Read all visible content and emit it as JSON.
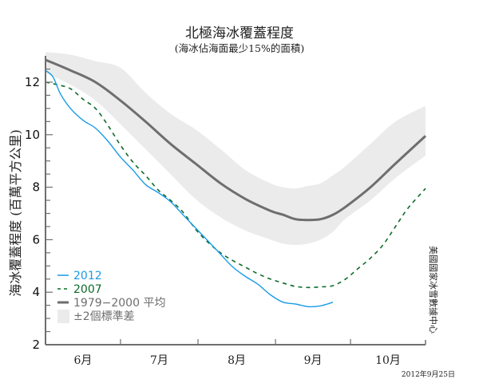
{
  "chart_data": {
    "type": "line",
    "title": "北極海冰覆蓋程度",
    "subtitle": "(海冰佔海面最少15%的面積)",
    "xlabel": "",
    "ylabel": "海冰覆蓋程度 (百萬平方公里)",
    "x_unit": "days since June 1",
    "xlim": [
      0,
      152
    ],
    "ylim": [
      2,
      13
    ],
    "yticks": [
      2,
      4,
      6,
      8,
      10,
      12
    ],
    "ytick_labels": [
      "2",
      "4",
      "6",
      "8",
      "10",
      "12"
    ],
    "month_boundaries": [
      30,
      61,
      92,
      122
    ],
    "month_labels": [
      {
        "label": "6月",
        "center": 15
      },
      {
        "label": "7月",
        "center": 45.5
      },
      {
        "label": "8月",
        "center": 76.5
      },
      {
        "label": "9月",
        "center": 107
      },
      {
        "label": "10月",
        "center": 137
      }
    ],
    "legend_position": "bottom-left",
    "series": [
      {
        "name": "2012",
        "legend": "2012",
        "color": "#1a9be6",
        "style": "solid",
        "x": [
          0,
          3,
          6,
          10,
          15,
          20,
          25,
          30,
          35,
          40,
          45,
          50,
          55,
          60,
          65,
          70,
          75,
          80,
          85,
          90,
          95,
          100,
          105,
          110,
          115
        ],
        "y": [
          12.45,
          12.2,
          11.55,
          11.0,
          10.55,
          10.25,
          9.75,
          9.15,
          8.65,
          8.1,
          7.8,
          7.45,
          6.95,
          6.45,
          5.95,
          5.45,
          4.95,
          4.6,
          4.3,
          3.9,
          3.62,
          3.55,
          3.45,
          3.48,
          3.62
        ]
      },
      {
        "name": "2007",
        "legend": "2007",
        "color": "#0d6b2a",
        "style": "dashed",
        "x": [
          0,
          5,
          10,
          15,
          20,
          25,
          30,
          35,
          40,
          45,
          50,
          55,
          60,
          65,
          70,
          75,
          80,
          85,
          90,
          95,
          100,
          105,
          110,
          115,
          120,
          125,
          130,
          135,
          140,
          145,
          152
        ],
        "y": [
          12.0,
          11.9,
          11.75,
          11.35,
          11.0,
          10.35,
          9.6,
          8.95,
          8.45,
          7.9,
          7.5,
          7.05,
          6.4,
          5.9,
          5.5,
          5.2,
          4.95,
          4.7,
          4.5,
          4.35,
          4.22,
          4.18,
          4.2,
          4.25,
          4.5,
          4.9,
          5.3,
          5.8,
          6.5,
          7.2,
          7.95
        ]
      },
      {
        "name": "1979-2000 mean",
        "legend": "1979−2000 平均",
        "color": "#6e6e6e",
        "style": "solid-thick",
        "x": [
          0,
          10,
          20,
          30,
          40,
          50,
          60,
          70,
          80,
          90,
          95,
          100,
          105,
          110,
          115,
          120,
          130,
          140,
          152
        ],
        "y": [
          12.85,
          12.45,
          12.0,
          11.3,
          10.5,
          9.65,
          8.9,
          8.15,
          7.55,
          7.1,
          6.95,
          6.78,
          6.75,
          6.78,
          6.95,
          7.25,
          8.0,
          8.9,
          9.95
        ]
      }
    ],
    "band": {
      "name": "±2 standard deviations",
      "legend": "±2個標準差",
      "color": "#ebebeb",
      "x": [
        0,
        10,
        20,
        30,
        40,
        50,
        60,
        70,
        80,
        90,
        95,
        100,
        105,
        110,
        115,
        120,
        130,
        140,
        152
      ],
      "upper": [
        13.15,
        13.05,
        12.8,
        12.55,
        11.6,
        10.8,
        10.2,
        9.45,
        8.65,
        8.15,
        8.0,
        7.95,
        8.05,
        8.15,
        8.45,
        8.8,
        9.65,
        10.5,
        11.1
      ],
      "lower": [
        12.35,
        11.9,
        11.3,
        10.4,
        9.45,
        8.5,
        7.55,
        6.85,
        6.35,
        6.0,
        5.85,
        5.8,
        5.85,
        6.0,
        6.3,
        6.8,
        7.5,
        8.35,
        9.2
      ]
    },
    "annotations": [
      "美國國家冰雪數據中心",
      "2012年9月25日"
    ]
  },
  "text": {
    "title": "北極海冰覆蓋程度",
    "subtitle": "(海冰佔海面最少15%的面積)",
    "ylabel": "海冰覆蓋程度 (百萬平方公里)",
    "credit": "美國國家冰雪數據中心",
    "date": "2012年9月25日"
  }
}
